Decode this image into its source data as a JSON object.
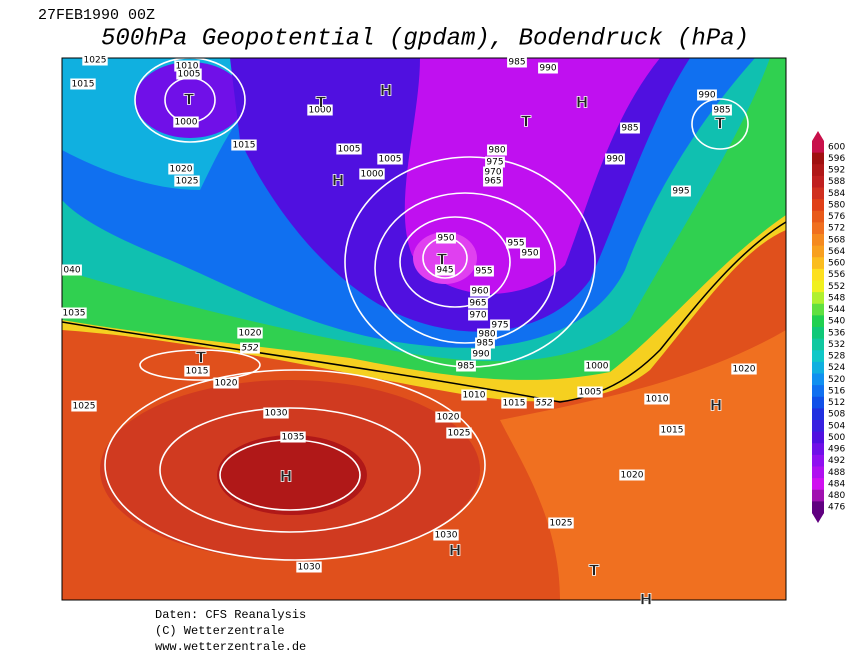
{
  "header": {
    "date": "27FEB1990 00Z",
    "title": "500hPa Geopotential (gpdam), Bodendruck (hPa)"
  },
  "legend": {
    "labels": [
      600,
      596,
      592,
      588,
      584,
      580,
      576,
      572,
      568,
      564,
      560,
      556,
      552,
      548,
      544,
      540,
      536,
      532,
      528,
      524,
      520,
      516,
      512,
      508,
      504,
      500,
      496,
      492,
      488,
      484,
      480,
      476
    ],
    "colors": [
      "#c8104a",
      "#a01010",
      "#b01818",
      "#c02020",
      "#d03020",
      "#e04018",
      "#e85a1a",
      "#f07020",
      "#f58a20",
      "#f8a020",
      "#fbbd20",
      "#fde020",
      "#f0f020",
      "#b0f030",
      "#60e040",
      "#20d050",
      "#10c878",
      "#10c8a0",
      "#10c8c8",
      "#10b0e0",
      "#1090f0",
      "#1070f0",
      "#1050e8",
      "#2030e0",
      "#3820e0",
      "#5010e0",
      "#7010e8",
      "#9010f0",
      "#b010f0",
      "#d010f0",
      "#a010b0",
      "#600080"
    ]
  },
  "map": {
    "pressure_labels": [
      "1025",
      "1015",
      "1010",
      "1005",
      "1000",
      "1015",
      "1020",
      "1025",
      "1000",
      "1005",
      "1005",
      "1000",
      "985",
      "990",
      "985",
      "990",
      "990",
      "985",
      "995",
      "980",
      "975",
      "970",
      "965",
      "950",
      "945",
      "955",
      "950",
      "955",
      "960",
      "965",
      "970",
      "975",
      "980",
      "985",
      "990",
      "985",
      "1000",
      "1005",
      "1010",
      "1015",
      "552",
      "1010",
      "1020",
      "1015",
      "1020",
      "1025",
      "1020",
      "1025",
      "1030",
      "1035",
      "1030",
      "1030",
      "1020",
      "552",
      "1015",
      "1020",
      "1025",
      "1035",
      "040"
    ],
    "centers": [
      "T",
      "T",
      "H",
      "H",
      "T",
      "T",
      "H",
      "T",
      "T",
      "H",
      "H",
      "H",
      "T",
      "H"
    ]
  },
  "footer": {
    "lines": [
      "Daten: CFS Reanalysis",
      "(C) Wetterzentrale",
      "www.wetterzentrale.de"
    ]
  }
}
